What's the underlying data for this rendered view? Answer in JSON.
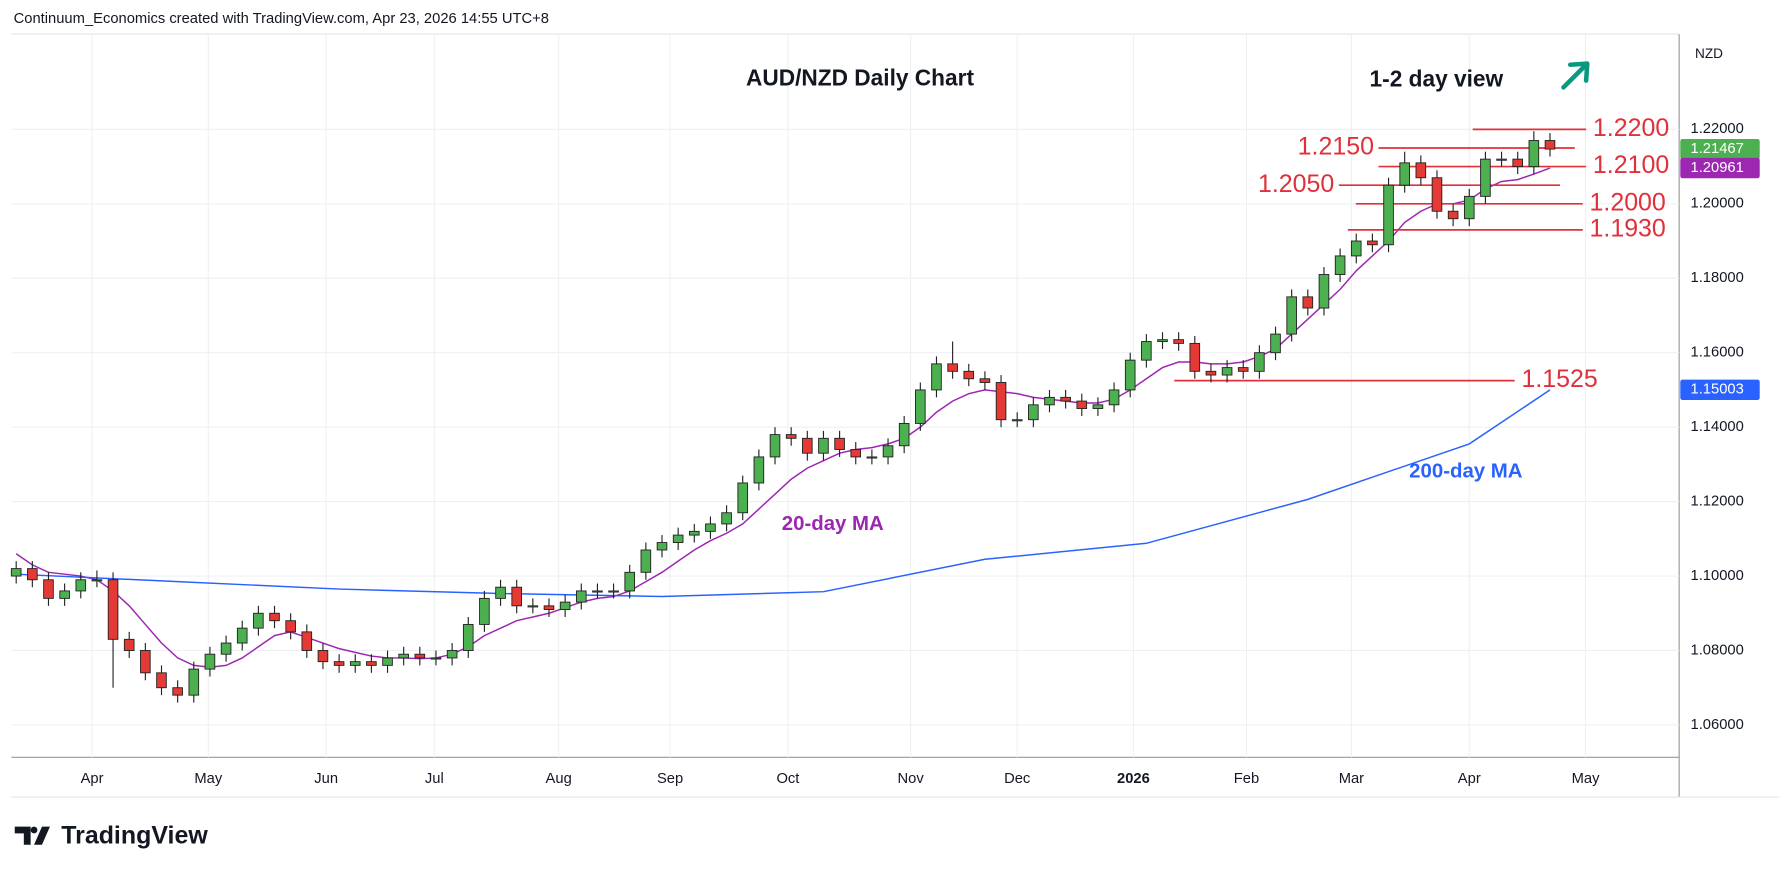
{
  "header": {
    "credit": "Continuum_Economics created with TradingView.com, Apr 23, 2026 14:55 UTC+8",
    "logo": "TradingView"
  },
  "chart_data": {
    "type": "candlestick",
    "title": "AUD/NZD Daily Chart",
    "annotation": "1-2 day view",
    "currency": "NZD",
    "grid": true,
    "up_color": "#4caf50",
    "down_color": "#e53935",
    "xlim": [
      -0.3,
      103
    ],
    "xticks": [
      {
        "value": 4.7,
        "label": "Apr"
      },
      {
        "value": 11.9,
        "label": "May"
      },
      {
        "value": 19.2,
        "label": "Jun"
      },
      {
        "value": 25.9,
        "label": "Jul"
      },
      {
        "value": 33.6,
        "label": "Aug"
      },
      {
        "value": 40.5,
        "label": "Sep"
      },
      {
        "value": 47.8,
        "label": "Oct"
      },
      {
        "value": 55.4,
        "label": "Nov"
      },
      {
        "value": 62.0,
        "label": "Dec"
      },
      {
        "value": 69.2,
        "label": "2026"
      },
      {
        "value": 76.2,
        "label": "Feb"
      },
      {
        "value": 82.7,
        "label": "Mar"
      },
      {
        "value": 90.0,
        "label": "Apr"
      },
      {
        "value": 97.2,
        "label": "May"
      }
    ],
    "ylim": [
      1.0513,
      1.2456
    ],
    "yticks": [
      {
        "value": 1.06,
        "label": "1.06000"
      },
      {
        "value": 1.08,
        "label": "1.08000"
      },
      {
        "value": 1.1,
        "label": "1.10000"
      },
      {
        "value": 1.12,
        "label": "1.12000"
      },
      {
        "value": 1.14,
        "label": "1.14000"
      },
      {
        "value": 1.16,
        "label": "1.16000"
      },
      {
        "value": 1.18,
        "label": "1.18000"
      },
      {
        "value": 1.2,
        "label": "1.20000"
      },
      {
        "value": 1.22,
        "label": "1.22000"
      }
    ],
    "open": [
      1.1,
      1.102,
      1.099,
      1.094,
      1.096,
      1.099,
      1.099,
      1.083,
      1.08,
      1.074,
      1.07,
      1.068,
      1.075,
      1.079,
      1.082,
      1.086,
      1.09,
      1.088,
      1.085,
      1.08,
      1.077,
      1.076,
      1.077,
      1.076,
      1.078,
      1.079,
      1.078,
      1.078,
      1.08,
      1.087,
      1.094,
      1.097,
      1.092,
      1.092,
      1.091,
      1.093,
      1.096,
      1.096,
      1.096,
      1.101,
      1.107,
      1.109,
      1.111,
      1.112,
      1.114,
      1.117,
      1.125,
      1.132,
      1.138,
      1.137,
      1.133,
      1.137,
      1.134,
      1.132,
      1.132,
      1.135,
      1.141,
      1.15,
      1.157,
      1.155,
      1.153,
      1.152,
      1.142,
      1.142,
      1.146,
      1.148,
      1.147,
      1.145,
      1.146,
      1.15,
      1.158,
      1.163,
      1.1635,
      1.1625,
      1.155,
      1.154,
      1.156,
      1.155,
      1.16,
      1.165,
      1.175,
      1.172,
      1.181,
      1.186,
      1.19,
      1.189,
      1.205,
      1.211,
      1.207,
      1.198,
      1.196,
      1.202,
      1.212,
      1.212,
      1.21,
      1.217
    ],
    "high": [
      1.104,
      1.104,
      1.101,
      1.098,
      1.101,
      1.1015,
      1.101,
      1.085,
      1.082,
      1.076,
      1.072,
      1.077,
      1.081,
      1.084,
      1.088,
      1.092,
      1.092,
      1.09,
      1.087,
      1.082,
      1.079,
      1.079,
      1.079,
      1.08,
      1.081,
      1.081,
      1.08,
      1.082,
      1.089,
      1.096,
      1.099,
      1.099,
      1.094,
      1.094,
      1.095,
      1.098,
      1.098,
      1.098,
      1.103,
      1.109,
      1.111,
      1.113,
      1.114,
      1.116,
      1.119,
      1.127,
      1.134,
      1.14,
      1.14,
      1.139,
      1.139,
      1.139,
      1.136,
      1.134,
      1.137,
      1.143,
      1.152,
      1.159,
      1.163,
      1.157,
      1.155,
      1.154,
      1.144,
      1.148,
      1.15,
      1.15,
      1.149,
      1.148,
      1.152,
      1.16,
      1.165,
      1.1655,
      1.1655,
      1.1645,
      1.157,
      1.158,
      1.158,
      1.162,
      1.167,
      1.177,
      1.177,
      1.183,
      1.188,
      1.192,
      1.192,
      1.207,
      1.214,
      1.213,
      1.209,
      1.2,
      1.204,
      1.214,
      1.214,
      1.214,
      1.2195,
      1.219
    ],
    "low": [
      1.098,
      1.097,
      1.092,
      1.092,
      1.094,
      1.097,
      1.07,
      1.078,
      1.072,
      1.068,
      1.066,
      1.066,
      1.073,
      1.077,
      1.08,
      1.084,
      1.086,
      1.083,
      1.078,
      1.075,
      1.074,
      1.074,
      1.074,
      1.074,
      1.076,
      1.076,
      1.076,
      1.076,
      1.078,
      1.085,
      1.092,
      1.09,
      1.09,
      1.089,
      1.089,
      1.091,
      1.094,
      1.094,
      1.094,
      1.099,
      1.105,
      1.107,
      1.109,
      1.11,
      1.112,
      1.115,
      1.123,
      1.13,
      1.135,
      1.131,
      1.131,
      1.132,
      1.13,
      1.13,
      1.13,
      1.133,
      1.139,
      1.148,
      1.153,
      1.151,
      1.15,
      1.14,
      1.14,
      1.14,
      1.144,
      1.145,
      1.143,
      1.143,
      1.144,
      1.148,
      1.156,
      1.161,
      1.1605,
      1.153,
      1.152,
      1.152,
      1.153,
      1.153,
      1.158,
      1.163,
      1.17,
      1.17,
      1.179,
      1.184,
      1.187,
      1.187,
      1.203,
      1.205,
      1.196,
      1.194,
      1.194,
      1.2,
      1.21,
      1.208,
      1.208,
      1.2127
    ],
    "close": [
      1.102,
      1.099,
      1.094,
      1.096,
      1.099,
      1.099,
      1.083,
      1.08,
      1.074,
      1.07,
      1.068,
      1.075,
      1.079,
      1.082,
      1.086,
      1.09,
      1.088,
      1.085,
      1.08,
      1.077,
      1.076,
      1.077,
      1.076,
      1.078,
      1.079,
      1.078,
      1.078,
      1.08,
      1.087,
      1.094,
      1.097,
      1.092,
      1.092,
      1.091,
      1.093,
      1.096,
      1.096,
      1.096,
      1.101,
      1.107,
      1.109,
      1.111,
      1.112,
      1.114,
      1.117,
      1.125,
      1.132,
      1.138,
      1.137,
      1.133,
      1.137,
      1.134,
      1.132,
      1.132,
      1.135,
      1.141,
      1.15,
      1.157,
      1.155,
      1.153,
      1.152,
      1.142,
      1.142,
      1.146,
      1.148,
      1.147,
      1.145,
      1.146,
      1.15,
      1.158,
      1.163,
      1.1635,
      1.1625,
      1.155,
      1.154,
      1.156,
      1.155,
      1.16,
      1.165,
      1.175,
      1.172,
      1.181,
      1.186,
      1.19,
      1.189,
      1.205,
      1.211,
      1.207,
      1.198,
      1.196,
      1.202,
      1.212,
      1.212,
      1.21,
      1.217,
      1.2147
    ],
    "series": [
      {
        "name": "20-day MA",
        "color": "#9c27b0",
        "values": [
          1.106,
          1.103,
          1.101,
          1.1005,
          1.1,
          1.099,
          1.096,
          1.092,
          1.087,
          1.082,
          1.078,
          1.076,
          1.0755,
          1.076,
          1.078,
          1.081,
          1.084,
          1.085,
          1.0835,
          1.082,
          1.0805,
          1.0795,
          1.0785,
          1.078,
          1.078,
          1.0778,
          1.078,
          1.079,
          1.081,
          1.084,
          1.086,
          1.088,
          1.089,
          1.09,
          1.0915,
          1.093,
          1.094,
          1.0945,
          1.096,
          1.0985,
          1.101,
          1.104,
          1.107,
          1.1095,
          1.1115,
          1.114,
          1.118,
          1.122,
          1.126,
          1.129,
          1.131,
          1.133,
          1.134,
          1.1345,
          1.1355,
          1.137,
          1.14,
          1.144,
          1.147,
          1.149,
          1.15,
          1.1495,
          1.149,
          1.148,
          1.1475,
          1.147,
          1.1465,
          1.1465,
          1.1475,
          1.15,
          1.153,
          1.156,
          1.1575,
          1.1575,
          1.157,
          1.157,
          1.1575,
          1.159,
          1.161,
          1.165,
          1.169,
          1.173,
          1.177,
          1.182,
          1.186,
          1.19,
          1.195,
          1.198,
          1.2,
          1.2,
          1.201,
          1.204,
          1.206,
          1.2065,
          1.208,
          1.2096
        ]
      },
      {
        "name": "200-day MA",
        "color": "#2962ff",
        "x": [
          0,
          10,
          20,
          30,
          40,
          50,
          60,
          70,
          80,
          90,
          95
        ],
        "values": [
          1.1005,
          1.0985,
          1.0965,
          1.0953,
          1.0945,
          1.0958,
          1.1045,
          1.1088,
          1.1206,
          1.1355,
          1.15
        ]
      }
    ],
    "levels": [
      {
        "value": 1.22,
        "label": "1.2200"
      },
      {
        "value": 1.215,
        "label": "1.2150"
      },
      {
        "value": 1.21,
        "label": "1.2100"
      },
      {
        "value": 1.205,
        "label": "1.2050"
      },
      {
        "value": 1.2,
        "label": "1.2000"
      },
      {
        "value": 1.193,
        "label": "1.1930"
      },
      {
        "value": 1.1525,
        "label": "1.1525"
      }
    ],
    "level_color": "#e0303a",
    "price_tags": [
      {
        "value": 1.21467,
        "label": "1.21467",
        "color": "#4caf50"
      },
      {
        "value": 1.20961,
        "label": "1.20961",
        "color": "#9c27b0"
      },
      {
        "value": 1.15003,
        "label": "1.15003",
        "color": "#2962ff"
      }
    ]
  }
}
